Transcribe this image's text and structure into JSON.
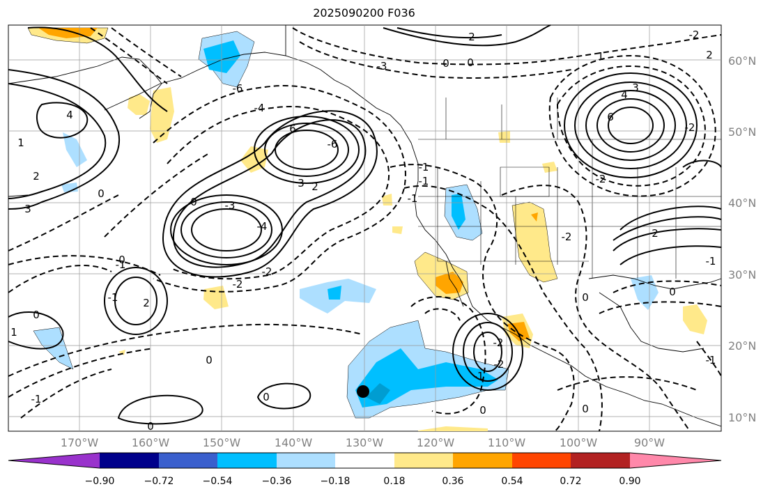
{
  "title": "2025090200 F036",
  "lat_labels": [
    "60°N",
    "50°N",
    "40°N",
    "30°N",
    "20°N",
    "10°N"
  ],
  "lon_labels": [
    "170°W",
    "160°W",
    "150°W",
    "140°W",
    "130°W",
    "120°W",
    "110°W",
    "100°W",
    "90°W"
  ],
  "colorbar": {
    "labels": [
      "−0.90",
      "−0.72",
      "−0.54",
      "−0.36",
      "−0.18",
      "0.18",
      "0.36",
      "0.54",
      "0.72",
      "0.90"
    ],
    "colors": [
      "#9932CC",
      "#00008B",
      "#3A5FCD",
      "#00BFFF",
      "#ADDFFF",
      "#FFFFFF",
      "#FFE98A",
      "#FFA500",
      "#FF4500",
      "#B22222",
      "#FF88AA"
    ]
  },
  "contour_labels": [
    "-6",
    "-3",
    "-1",
    "0",
    "1",
    "2",
    "3",
    "4",
    "6",
    "-2",
    "-4",
    "1",
    "-1",
    "0",
    "2",
    "-6",
    "3",
    "2",
    "0",
    "-4",
    "-3",
    "-2",
    "6",
    "4",
    "3",
    "2",
    "0",
    "-1",
    "-2",
    "0",
    "1",
    "-1",
    "0",
    "-2",
    "0",
    "-2",
    "-1",
    "0",
    "-1",
    "0",
    "2",
    "-2",
    "0",
    "-2",
    "-1",
    "0",
    "0",
    "-1",
    "2",
    "-2",
    "0",
    "-1"
  ],
  "map_colors": {
    "ocean": "#ffffff",
    "land_line": "#000000",
    "grid": "#999999",
    "positive_line": "#000000",
    "negative_line": "#000000"
  }
}
